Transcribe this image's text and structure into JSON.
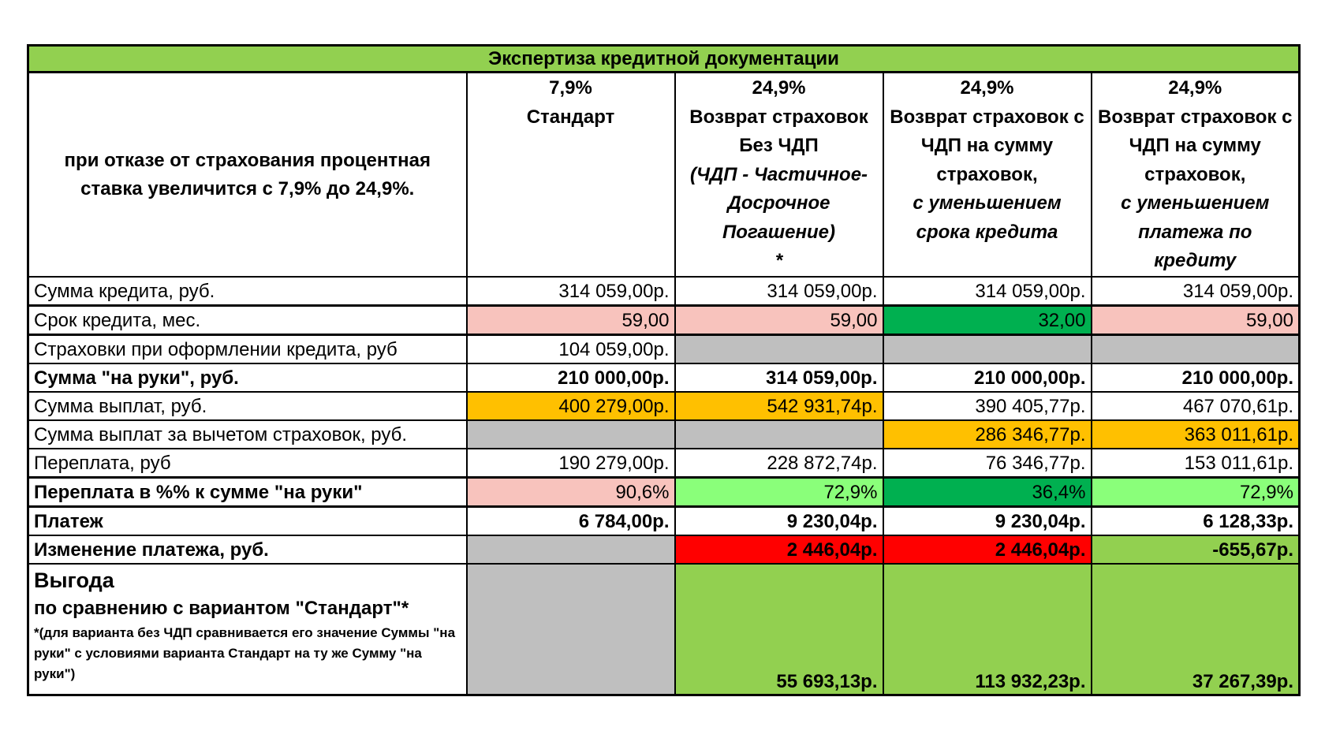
{
  "title": "Экспертиза кредитной документации",
  "header": {
    "description": "при отказе от страхования процентная ставка увеличится с 7,9% до 24,9%.",
    "columns": [
      {
        "rate": "7,9%",
        "lines": [
          "Стандарт"
        ],
        "italic_lines": [],
        "note": ""
      },
      {
        "rate": "24,9%",
        "lines": [
          "Возврат страховок",
          "Без ЧДП"
        ],
        "italic_lines": [
          "(ЧДП - Частичное-",
          "Досрочное",
          "Погашение)"
        ],
        "note": "*"
      },
      {
        "rate": "24,9%",
        "lines": [
          "Возврат страховок с",
          "ЧДП на сумму",
          "страховок,"
        ],
        "italic_lines": [
          "с уменьшением",
          "срока кредита"
        ],
        "note": ""
      },
      {
        "rate": "24,9%",
        "lines": [
          "Возврат страховок с",
          "ЧДП на сумму",
          "страховок,"
        ],
        "italic_lines": [
          "с уменьшением",
          "платежа по",
          "кредиту"
        ],
        "note": ""
      }
    ]
  },
  "rows": [
    {
      "label": "Сумма кредита, руб.",
      "bold": false,
      "thick": false,
      "values": [
        "314 059,00р.",
        "314 059,00р.",
        "314 059,00р.",
        "314 059,00р."
      ],
      "fills": [
        "",
        "",
        "",
        ""
      ]
    },
    {
      "label": "Срок кредита, мес.",
      "bold": false,
      "thick": true,
      "values": [
        "59,00",
        "59,00",
        "32,00",
        "59,00"
      ],
      "fills": [
        "pink",
        "pink",
        "green",
        "pink"
      ]
    },
    {
      "label": "Страховки при оформлении кредита, руб",
      "bold": false,
      "thick": false,
      "values": [
        "104 059,00р.",
        "",
        "",
        ""
      ],
      "fills": [
        "",
        "gray",
        "gray",
        "gray"
      ]
    },
    {
      "label": "Сумма \"на руки\", руб.",
      "bold": true,
      "thick": false,
      "values": [
        "210 000,00р.",
        "314 059,00р.",
        "210 000,00р.",
        "210 000,00р."
      ],
      "fills": [
        "",
        "",
        "",
        ""
      ]
    },
    {
      "label": "Сумма выплат, руб.",
      "bold": false,
      "thick": false,
      "values": [
        "400 279,00р.",
        "542 931,74р.",
        "390 405,77р.",
        "467 070,61р."
      ],
      "fills": [
        "orange",
        "orange",
        "",
        ""
      ]
    },
    {
      "label": "Сумма выплат за вычетом страховок, руб.",
      "bold": false,
      "thick": false,
      "values": [
        "",
        "",
        "286 346,77р.",
        "363 011,61р."
      ],
      "fills": [
        "gray",
        "gray",
        "orange",
        "orange"
      ]
    },
    {
      "label": "Переплата, руб",
      "bold": false,
      "thick": false,
      "values": [
        "190 279,00р.",
        "228 872,74р.",
        "76 346,77р.",
        "153 011,61р."
      ],
      "fills": [
        "",
        "",
        "",
        ""
      ]
    },
    {
      "label": "Переплата в %% к сумме \"на руки\"",
      "bold": true,
      "thick": true,
      "values": [
        "90,6%",
        "72,9%",
        "36,4%",
        "72,9%"
      ],
      "fills": [
        "pink",
        "lgreen",
        "green",
        "lgreen"
      ],
      "value_bold": false
    },
    {
      "label": "Платеж",
      "bold": true,
      "thick": false,
      "values": [
        "6 784,00р.",
        "9 230,04р.",
        "9 230,04р.",
        "6 128,33р."
      ],
      "fills": [
        "",
        "",
        "",
        ""
      ]
    },
    {
      "label": "Изменение платежа, руб.",
      "bold": true,
      "thick": false,
      "values": [
        "",
        "2 446,04р.",
        "2 446,04р.",
        "-655,67р."
      ],
      "fills": [
        "gray",
        "red",
        "red",
        "lime"
      ]
    }
  ],
  "benefit": {
    "title": "Выгода",
    "subtitle": "по сравнению с вариантом  \"Стандарт\"*",
    "note": "*(для варианта без ЧДП сравнивается его значение Суммы \"на руки\"  с условиями варианта Стандарт на ту же Сумму \"на руки\")",
    "values": [
      "",
      "55 693,13р.",
      "113 932,23р.",
      "37 267,39р."
    ],
    "fills": [
      "gray",
      "lime",
      "lime",
      "lime"
    ]
  }
}
